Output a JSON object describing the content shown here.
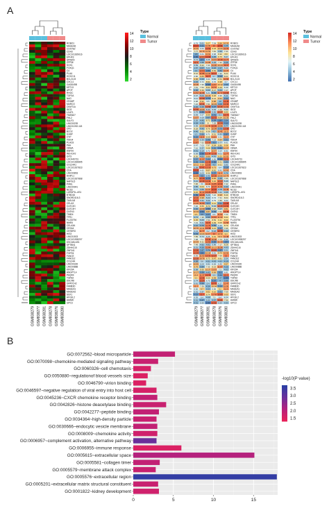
{
  "panels": {
    "a": {
      "letter": "A"
    },
    "b": {
      "letter": "B"
    }
  },
  "heatmap": {
    "samples": [
      "GSM838279",
      "GSM838277",
      "GSM838281",
      "GSM838278",
      "GSM838276",
      "GSM838280"
    ],
    "groups": [
      "Normal",
      "Normal",
      "Normal",
      "Tumor",
      "Tumor",
      "Tumor"
    ],
    "type_legend": {
      "title": "Type",
      "items": [
        {
          "label": "Normal",
          "color": "#5bc0de"
        },
        {
          "label": "Tumor",
          "color": "#f08a8a"
        }
      ]
    },
    "left_scale": {
      "ticks": [
        "14",
        "12",
        "10",
        "8",
        "6",
        "4",
        "2"
      ],
      "colors": [
        "#ff1a1a",
        "#8b0000",
        "#1a1a1a",
        "#007a00",
        "#28d228"
      ]
    },
    "right_scale": {
      "ticks": [
        "14",
        "12",
        "10",
        "8",
        "6",
        "4",
        "2"
      ],
      "colors": [
        "#d73027",
        "#fc8d59",
        "#fee090",
        "#e0f3f8",
        "#91bfdb",
        "#4575b4"
      ]
    },
    "genes": [
      "ROBO1",
      "MAGEA6",
      "COX7B2",
      "CDH3",
      "LOC101929016",
      "EPHX3",
      "SPINK5",
      "ZFP36",
      "SOX1",
      "FOXQ1",
      "C4",
      "PLAU",
      "HOXC11",
      "BCL2L15",
      "CXCL1",
      "GADD45B",
      "KRT13",
      "APOF",
      "RHOC",
      "TOP2A",
      "NAG",
      "CRABP",
      "MARCO",
      "CKMT1A",
      "IDO2",
      "LCAT1",
      "TMEM27",
      "FHL2",
      "SULF3",
      "LINC00239",
      "LINC01092-118",
      "CFD",
      "BCO2",
      "ILVBP",
      "CYP",
      "VSIG4",
      "PLAC8",
      "PAH",
      "CBWA",
      "HSP20",
      "INS-IGF2",
      "GIT3",
      "LOC440731",
      "LOC101926895",
      "COL24A1",
      "LOC101927823",
      "CDA",
      "LINC00893",
      "HHIPL1",
      "LOC101927868",
      "NAPSL5",
      "PIWIL",
      "LINC00941",
      "NCS3",
      "LURAP1L-AS1",
      "BTBD16",
      "SNORD116-3",
      "TAGLN3",
      "CELA3",
      "CLEC4G",
      "CLEC4H",
      "CNTN3",
      "TIMD4",
      "TFR1",
      "FLJ33794",
      "NME6",
      "CELA3A",
      "CESA4",
      "CES5RG",
      "HIS3",
      "LINC01503",
      "LOC101928207",
      "DSCAM-AS1",
      "SPTBN1",
      "ZDHHC15",
      "ZNF341",
      "FGFR4",
      "FANCE",
      "FANCE2",
      "COL24A",
      "LINC00326",
      "LINC00888",
      "KIF20A",
      "ANGPTL4",
      "PAQR4",
      "TGFB2",
      "DSCR8",
      "GPATCH2",
      "FAM83D",
      "MAGEA1",
      "MAGEA2",
      "SSX1",
      "AFG3L2",
      "HMMR",
      "GPC3"
    ],
    "tile_values": [
      [
        6.79,
        13.17,
        10.49,
        7.77,
        3.8,
        2.65,
        5.74,
        12.3,
        5.59,
        4.87,
        4.4,
        8.16,
        6.86,
        9.58,
        4.34,
        10.95,
        7.51,
        4.06,
        11.52,
        6.07,
        6.11,
        6.98,
        7.22,
        4.32,
        12.59,
        5.79,
        5.93,
        11.07,
        5.26,
        4.28,
        5.99,
        8.28,
        4.46,
        5.3,
        3.22,
        10.97,
        11.87,
        6.47,
        7.16,
        4.41,
        6.09,
        8.36,
        3.57,
        3.49,
        10.11,
        5.38,
        13.03,
        2.43,
        11.29,
        9.77,
        5.21,
        7.96,
        4.85,
        5.11,
        9.22,
        2.99,
        12.04,
        12.74,
        11.28,
        7.02,
        4.02,
        10.34,
        9.5,
        4.71,
        9.35,
        7.19,
        4.16,
        10.76,
        6.13,
        3.19,
        7.89,
        7.08,
        10.53,
        7.48,
        5.31,
        12.56,
        12.34,
        6.93,
        12.29,
        4.08,
        10.45,
        9.79,
        5.08,
        10.27,
        10.4,
        9.3,
        5.74,
        5.61,
        11.2,
        6.66,
        6.01,
        3.12,
        6.35,
        5.01,
        4.31,
        6.49
      ],
      [
        5.61,
        3.21,
        6.64,
        10.78,
        6.61,
        12.04,
        2.7,
        4.58,
        8.22,
        4.07,
        12.04,
        11.88,
        9.65,
        4.23,
        6.72,
        7.35,
        7.54,
        8.39,
        11.96,
        5.04,
        12.58,
        8.92,
        12.31,
        4.19,
        10.66,
        2.99,
        6.67,
        6.08,
        4.45,
        4.36,
        10.09,
        4.45,
        8.62,
        3.95,
        11.8,
        5.39,
        7.52,
        7.03,
        5.37,
        5.14,
        2.56,
        4.51,
        11.57,
        3.59,
        9.68,
        12.61,
        6.62,
        6.03,
        3.5,
        12.49,
        12.38,
        6.0,
        9.04,
        4.69,
        11.43,
        12.26,
        9.98,
        5.52,
        11.94,
        8.55,
        10.58,
        2.64,
        3.5,
        7.38,
        5.05,
        5.61,
        3.79,
        10.31,
        11.77,
        10.09,
        5.74,
        7.1,
        8.11,
        4.92,
        4.16,
        3.87,
        2.6,
        11.02,
        10.76,
        5.6,
        6.04,
        3.84,
        8.66,
        3.39,
        11.37,
        12.46,
        12.54,
        3.56,
        7.39,
        9.7,
        5.87,
        12.7,
        6.4,
        3.47,
        5.93,
        11.8
      ],
      [
        9.27,
        11.09,
        12.52,
        10.54,
        10.61,
        12.92,
        6.08,
        11.05,
        7.33,
        5.63,
        2.86,
        10.93,
        12.7,
        6.93,
        8.91,
        2.43,
        8.94,
        4.69,
        6.21,
        10.47,
        2.79,
        6.5,
        7.91,
        12.56,
        5.44,
        11.98,
        8.99,
        3.67,
        8.72,
        8.0,
        11.48,
        8.76,
        8.38,
        6.71,
        8.68,
        3.48,
        12.16,
        7.97,
        9.08,
        6.72,
        12.34,
        9.96,
        3.46,
        12.45,
        12.03,
        12.19,
        9.57,
        8.36,
        5.45,
        2.73,
        12.32,
        11.42,
        6.73,
        10.97,
        12.23,
        5.29,
        5.23,
        5.59,
        3.4,
        8.73,
        2.89,
        9.87,
        3.27,
        3.96,
        7.53,
        12.5,
        11.79,
        12.39,
        6.2,
        11.17,
        6.25,
        12.46,
        11.91,
        4.82,
        11.64,
        3.76,
        10.18,
        12.31,
        8.73,
        4.51,
        5.91,
        7.35,
        10.27,
        4.42,
        12.74,
        8.59,
        6.75,
        5.4,
        4.14,
        4.53,
        9.61,
        8.74,
        4.68,
        5.44,
        2.44,
        4.21
      ],
      [
        7.34,
        12.0,
        9.18,
        7.81,
        6.68,
        4.25,
        11.04,
        5.25,
        11.18,
        4.22,
        8.69,
        12.77,
        5.7,
        5.84,
        6.76,
        11.57,
        11.72,
        8.47,
        3.39,
        9.26,
        8.44,
        9.88,
        10.33,
        3.27,
        5.93,
        5.55,
        3.41,
        12.72,
        3.28,
        7.28,
        12.35,
        10.94,
        4.5,
        8.51,
        11.61,
        7.23,
        3.2,
        9.04,
        3.52,
        10.47,
        12.39,
        4.91,
        6.95,
        2.95,
        4.5,
        9.73,
        8.81,
        3.37,
        12.26,
        9.84,
        9.46,
        11.85,
        12.07,
        12.94,
        12.28,
        7.22,
        6.72,
        6.79,
        9.12,
        5.34,
        8.68,
        3.39,
        6.6,
        11.94,
        8.59,
        9.09,
        3.59,
        9.21,
        5.18,
        12.0,
        9.01,
        10.98,
        3.05,
        5.96,
        10.13,
        12.83,
        6.51,
        12.57,
        9.47,
        4.43,
        6.26,
        8.19,
        11.03,
        9.69,
        5.5,
        9.48,
        3.07,
        12.75,
        10.04,
        6.96,
        9.16,
        11.78,
        7.3,
        4.57,
        12.62,
        11.79
      ],
      [
        9.84,
        12.91,
        10.09,
        4.99,
        8.32,
        8.75,
        12.19,
        7.32,
        10.44,
        4.37,
        3.84,
        7.32,
        3.13,
        8.53,
        9.38,
        10.12,
        9.19,
        4.44,
        11.72,
        6.96,
        9.91,
        4.8,
        4.06,
        12.46,
        7.46,
        12.27,
        5.1,
        9.54,
        2.8,
        12.34,
        10.96,
        3.73,
        11.41,
        5.32,
        6.91,
        9.84,
        5.77,
        8.86,
        2.81,
        6.64,
        6.01,
        9.33,
        2.58,
        8.31,
        8.61,
        6.4,
        6.41,
        11.4,
        10.65,
        4.48,
        12.03,
        12.33,
        11.61,
        4.78,
        5.62,
        9.98,
        7.31,
        7.85,
        3.61,
        12.28,
        5.07,
        7.62,
        11.54,
        11.33,
        9.11,
        9.05,
        6.33,
        3.47,
        12.79,
        10.72,
        10.4,
        7.74,
        11.13,
        7.17,
        11.34,
        2.87,
        9.73,
        7.69,
        8.81,
        4.62,
        6.45,
        11.67,
        7.3,
        3.1,
        3.56,
        4.47,
        4.0,
        6.27,
        3.23,
        9.2,
        3.91,
        12.83,
        6.4,
        12.61,
        5.53,
        7.42
      ],
      [
        10.31,
        4.26,
        11.76,
        7.34,
        8.8,
        5.67,
        11.77,
        4.29,
        12.2,
        5.99,
        11.37,
        8.24,
        8.04,
        11.92,
        6.7,
        3.59,
        6.49,
        7.27,
        12.66,
        5.44,
        3.44,
        12.45,
        12.34,
        11.94,
        5.99,
        8.85,
        12.71,
        10.33,
        3.54,
        3.11,
        4.77,
        12.58,
        10.5,
        2.97,
        11.2,
        3.51,
        6.61,
        9.38,
        10.57,
        6.31,
        11.77,
        10.52,
        12.5,
        3.85,
        5.85,
        3.19,
        10.91,
        4.76,
        10.79,
        7.66,
        5.46,
        7.42,
        4.42,
        11.49,
        4.98,
        8.49,
        8.04,
        6.63,
        12.89,
        12.62,
        9.81,
        12.49,
        7.23,
        8.94,
        8.99,
        11.58,
        8.79,
        7.95,
        4.44,
        9.3,
        11.48,
        6.32,
        2.8,
        8.28,
        4.93,
        5.51,
        10.91,
        12.0,
        5.54,
        4.19,
        9.57,
        4.25,
        4.62,
        6.81,
        12.3,
        2.44,
        3.98,
        11.47,
        11.05,
        11.3,
        7.69,
        9.55,
        6.24,
        7.96,
        4.93,
        7.57
      ]
    ]
  },
  "go_chart": {
    "chart_data": {
      "type": "bar",
      "orientation": "horizontal",
      "categories": [
        "GO:0072562~blood microparticle",
        "GO:0070098~chemokine-mediated signaling pathway",
        "GO:0060326~cell chemotaxis",
        "GO:0050880~regulationof blood vessels size",
        "GO:0046790~virion binding",
        "GO:0046597~negative regulation of viral entry into host cell",
        "GO:0045236~CXCR chemokine receptor binding",
        "GO:0042826~histone deacetylase binding",
        "GO:0042277~peptide binding",
        "GO:0034364~high-density particle",
        "GO:0030666~endocytic vesicle membrane",
        "GO:0008009~chemokine activity",
        "GO:0006957~complement activation, alternative pathway",
        "GO:0006955~immune response",
        "GO:0005615~extracellular space",
        "GO:0005581~collagen timer",
        "GO:0005579~membrane attack complex",
        "GO:0005576~extracellular region",
        "GO:0005201~extracellular matrix structural constituent",
        "GO:0001822~kidney development"
      ],
      "values": [
        5.2,
        3.1,
        2.2,
        1.8,
        1.6,
        2.9,
        3.0,
        4.1,
        3.2,
        2.9,
        3.0,
        3.0,
        2.9,
        6.0,
        15.1,
        3.3,
        2.8,
        17.9,
        3.1,
        3.2
      ],
      "xticks": [
        "0",
        "5",
        "10",
        "15"
      ],
      "xlim": [
        0,
        18
      ],
      "color_scale": {
        "title": "-log10(P value)",
        "ticks": [
          "3.5",
          "3.0",
          "2.5",
          "2.0",
          "1.5"
        ],
        "range": [
          1.3,
          3.7
        ],
        "colors": [
          "#e8215a",
          "#b5217d",
          "#6a2f9b",
          "#2b3fa5"
        ]
      },
      "color_values": [
        1.9,
        1.8,
        1.6,
        1.5,
        1.5,
        1.6,
        1.9,
        1.8,
        1.9,
        1.8,
        1.9,
        1.7,
        2.9,
        1.5,
        2.1,
        1.9,
        1.8,
        3.6,
        1.8,
        1.7
      ],
      "grid": true
    }
  }
}
